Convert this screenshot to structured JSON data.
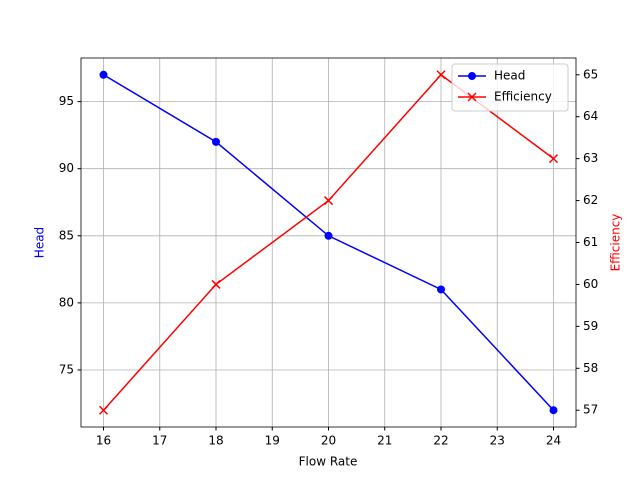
{
  "chart_data": {
    "type": "line",
    "x": [
      16,
      18,
      20,
      22,
      24
    ],
    "xlabel": "Flow Rate",
    "ylabel": "Head",
    "y2label": "Efficiency",
    "xlim": [
      15.6,
      24.4
    ],
    "xticks": [
      16,
      17,
      18,
      19,
      20,
      21,
      22,
      23,
      24
    ],
    "ylim": [
      70.75,
      98.25
    ],
    "yticks": [
      75,
      80,
      85,
      90,
      95
    ],
    "y2lim": [
      56.6,
      65.4
    ],
    "y2ticks": [
      57,
      58,
      59,
      60,
      61,
      62,
      63,
      64,
      65
    ],
    "grid": true,
    "legend": "upper right",
    "series": [
      {
        "name": "Head",
        "color": "#0000ff",
        "marker": "o",
        "values": [
          97,
          92,
          85,
          81,
          72
        ]
      },
      {
        "name": "Efficiency",
        "color": "#ff0000",
        "marker": "x",
        "axis": "y2",
        "values": [
          57,
          60,
          62,
          65,
          63
        ]
      }
    ]
  }
}
